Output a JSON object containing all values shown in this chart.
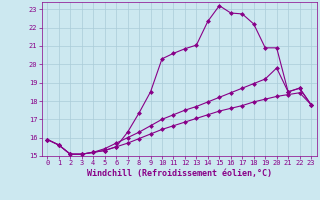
{
  "xlabel": "Windchill (Refroidissement éolien,°C)",
  "bg_color": "#cce8f0",
  "line_color": "#880088",
  "grid_color": "#aaccd8",
  "xlim": [
    -0.5,
    23.5
  ],
  "ylim": [
    15,
    23.4
  ],
  "xticks": [
    0,
    1,
    2,
    3,
    4,
    5,
    6,
    7,
    8,
    9,
    10,
    11,
    12,
    13,
    14,
    15,
    16,
    17,
    18,
    19,
    20,
    21,
    22,
    23
  ],
  "yticks": [
    15,
    16,
    17,
    18,
    19,
    20,
    21,
    22,
    23
  ],
  "line1_x": [
    0,
    1,
    2,
    3,
    4,
    5,
    6,
    7,
    8,
    9,
    10,
    11,
    12,
    13,
    14,
    15,
    16,
    17,
    18,
    19,
    20,
    21,
    22,
    23
  ],
  "line1_y": [
    15.9,
    15.6,
    15.1,
    15.1,
    15.2,
    15.3,
    15.5,
    16.3,
    17.35,
    18.5,
    20.3,
    20.6,
    20.85,
    21.05,
    22.35,
    23.2,
    22.8,
    22.75,
    22.2,
    20.9,
    20.9,
    18.5,
    18.7,
    17.8
  ],
  "line2_x": [
    0,
    1,
    2,
    3,
    4,
    5,
    6,
    7,
    8,
    9,
    10,
    11,
    12,
    13,
    14,
    15,
    16,
    17,
    18,
    19,
    20,
    21,
    22,
    23
  ],
  "line2_y": [
    15.9,
    15.6,
    15.1,
    15.1,
    15.2,
    15.4,
    15.7,
    16.0,
    16.3,
    16.65,
    17.0,
    17.25,
    17.5,
    17.7,
    17.95,
    18.2,
    18.45,
    18.7,
    18.95,
    19.2,
    19.8,
    18.5,
    18.7,
    17.8
  ],
  "line3_x": [
    0,
    1,
    2,
    3,
    4,
    5,
    6,
    7,
    8,
    9,
    10,
    11,
    12,
    13,
    14,
    15,
    16,
    17,
    18,
    19,
    20,
    21,
    22,
    23
  ],
  "line3_y": [
    15.9,
    15.6,
    15.1,
    15.1,
    15.2,
    15.3,
    15.5,
    15.7,
    15.95,
    16.2,
    16.45,
    16.65,
    16.85,
    17.05,
    17.25,
    17.45,
    17.6,
    17.75,
    17.95,
    18.1,
    18.25,
    18.35,
    18.45,
    17.8
  ],
  "marker": "D",
  "markersize": 2.5,
  "linewidth": 0.8,
  "tick_fontsize": 5.0,
  "label_fontsize": 6.0
}
